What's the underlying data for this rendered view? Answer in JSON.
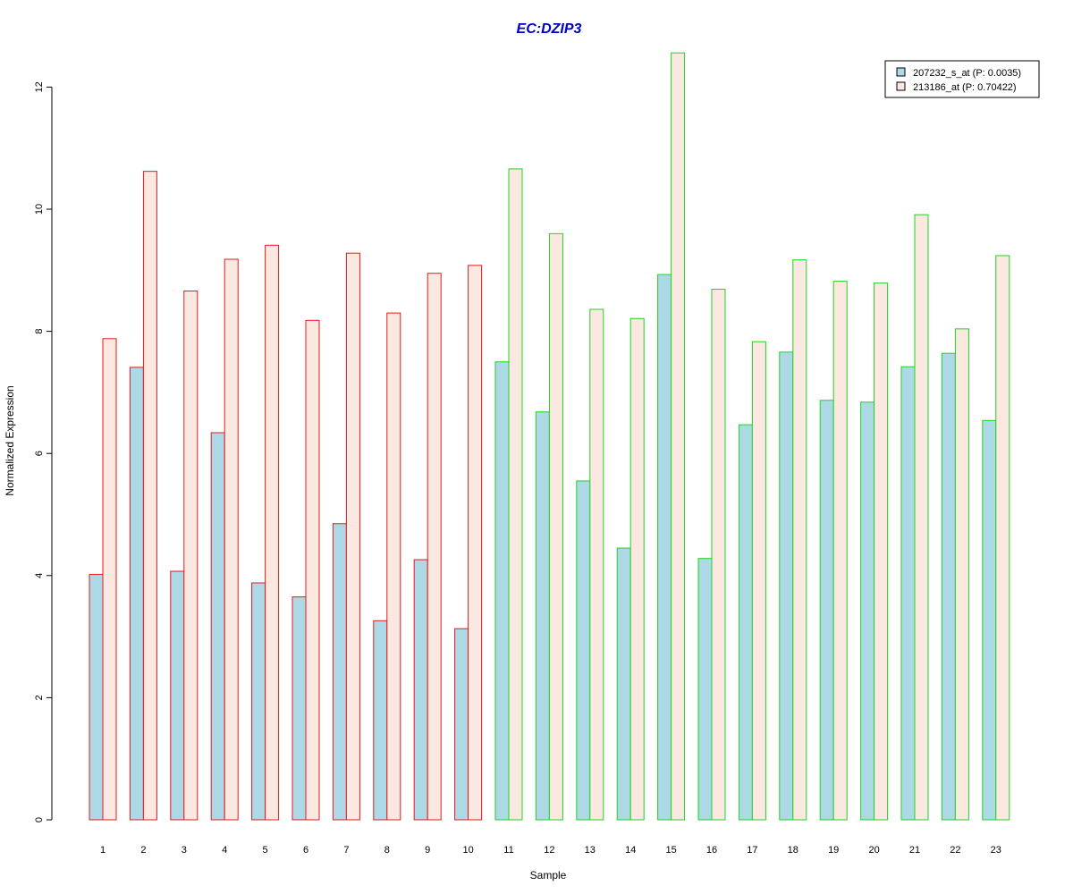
{
  "chart_data": {
    "type": "bar",
    "title": "EC:DZIP3",
    "xlabel": "Sample",
    "ylabel": "Normalized Expression",
    "categories": [
      "1",
      "2",
      "3",
      "4",
      "5",
      "6",
      "7",
      "8",
      "9",
      "10",
      "11",
      "12",
      "13",
      "14",
      "15",
      "16",
      "17",
      "18",
      "19",
      "20",
      "21",
      "22",
      "23"
    ],
    "series": [
      {
        "name": "207232_s_at (P: 0.0035)",
        "fill": "#add8e6",
        "values": [
          4.02,
          7.41,
          4.07,
          6.34,
          3.88,
          3.65,
          4.85,
          3.26,
          4.26,
          3.13,
          7.5,
          6.68,
          5.55,
          4.45,
          8.93,
          4.28,
          6.47,
          7.66,
          6.87,
          6.84,
          7.42,
          7.64,
          6.54
        ]
      },
      {
        "name": "213186_at (P: 0.70422)",
        "fill": "#fbe8e0",
        "values": [
          7.88,
          10.62,
          8.66,
          9.18,
          9.41,
          8.18,
          9.28,
          8.3,
          8.95,
          9.08,
          10.66,
          9.6,
          8.36,
          8.21,
          12.56,
          8.69,
          7.83,
          9.17,
          8.82,
          8.79,
          9.91,
          8.04,
          9.24
        ]
      }
    ],
    "group_border_colors": [
      "#e41a1c",
      "#e41a1c",
      "#e41a1c",
      "#e41a1c",
      "#e41a1c",
      "#e41a1c",
      "#e41a1c",
      "#e41a1c",
      "#e41a1c",
      "#e41a1c",
      "#1fd41f",
      "#1fd41f",
      "#1fd41f",
      "#1fd41f",
      "#1fd41f",
      "#1fd41f",
      "#1fd41f",
      "#1fd41f",
      "#1fd41f",
      "#1fd41f",
      "#1fd41f",
      "#1fd41f",
      "#1fd41f"
    ],
    "yticks": [
      "0",
      "2",
      "4",
      "6",
      "8",
      "10",
      "12"
    ],
    "ylim": [
      0,
      12.6
    ],
    "legend_position": "top-right",
    "grid": false,
    "title_color": "#0000cc"
  }
}
